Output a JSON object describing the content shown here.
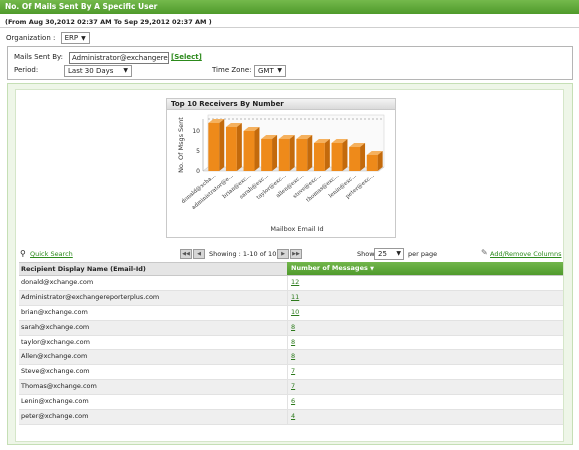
{
  "header": {
    "title": "No. Of Mails Sent By A Specific User",
    "date_range": "(From Aug 30,2012 02:37 AM To Sep 29,2012 02:37 AM )"
  },
  "organization": {
    "label": "Organization :",
    "value": "ERP"
  },
  "filters": {
    "mails_sent_by_label": "Mails Sent By:",
    "mails_sent_by_value": "Administrator@exchangerepor",
    "select_link": "[Select]",
    "period_label": "Period:",
    "period_value": "Last 30 Days",
    "timezone_label": "Time Zone:",
    "timezone_value": "GMT"
  },
  "chart_data": {
    "type": "bar",
    "title": "Top 10 Receivers By Number",
    "xlabel": "Mailbox Email Id",
    "ylabel": "No. Of Msgs Sent",
    "categories": [
      "donald@xcha...",
      "administrator@e...",
      "brian@exc...",
      "sarah@exc...",
      "taylor@exc...",
      "allen@exc...",
      "steve@exc...",
      "thomas@exc...",
      "lenin@exc...",
      "peter@exc..."
    ],
    "values": [
      12,
      11,
      10,
      8,
      8,
      8,
      7,
      7,
      6,
      4
    ],
    "yticks": [
      "0",
      "5",
      "10"
    ],
    "ylim": [
      0,
      13
    ],
    "bar_color": "#ee8a1a",
    "grid": "dashed-at-12"
  },
  "toolbar": {
    "quick_search": "Quick Search",
    "showing": "Showing : 1-10 of 10",
    "show_label": "Show",
    "page_size": "25",
    "per_page": "per page",
    "add_remove": "Add/Remove Columns"
  },
  "table": {
    "columns": [
      "Recipient Display Name (Email-Id)",
      "Number of Messages"
    ],
    "rows": [
      {
        "name": "donald@xchange.com",
        "count": "12"
      },
      {
        "name": "Administrator@exchangereporterplus.com",
        "count": "11"
      },
      {
        "name": "brian@xchange.com",
        "count": "10"
      },
      {
        "name": "sarah@xchange.com",
        "count": "8"
      },
      {
        "name": "taylor@xchange.com",
        "count": "8"
      },
      {
        "name": "Allen@xchange.com",
        "count": "8"
      },
      {
        "name": "Steve@xchange.com",
        "count": "7"
      },
      {
        "name": "Thomas@xchange.com",
        "count": "7"
      },
      {
        "name": "Lenin@xchange.com",
        "count": "6"
      },
      {
        "name": "peter@xchange.com",
        "count": "4"
      }
    ]
  }
}
